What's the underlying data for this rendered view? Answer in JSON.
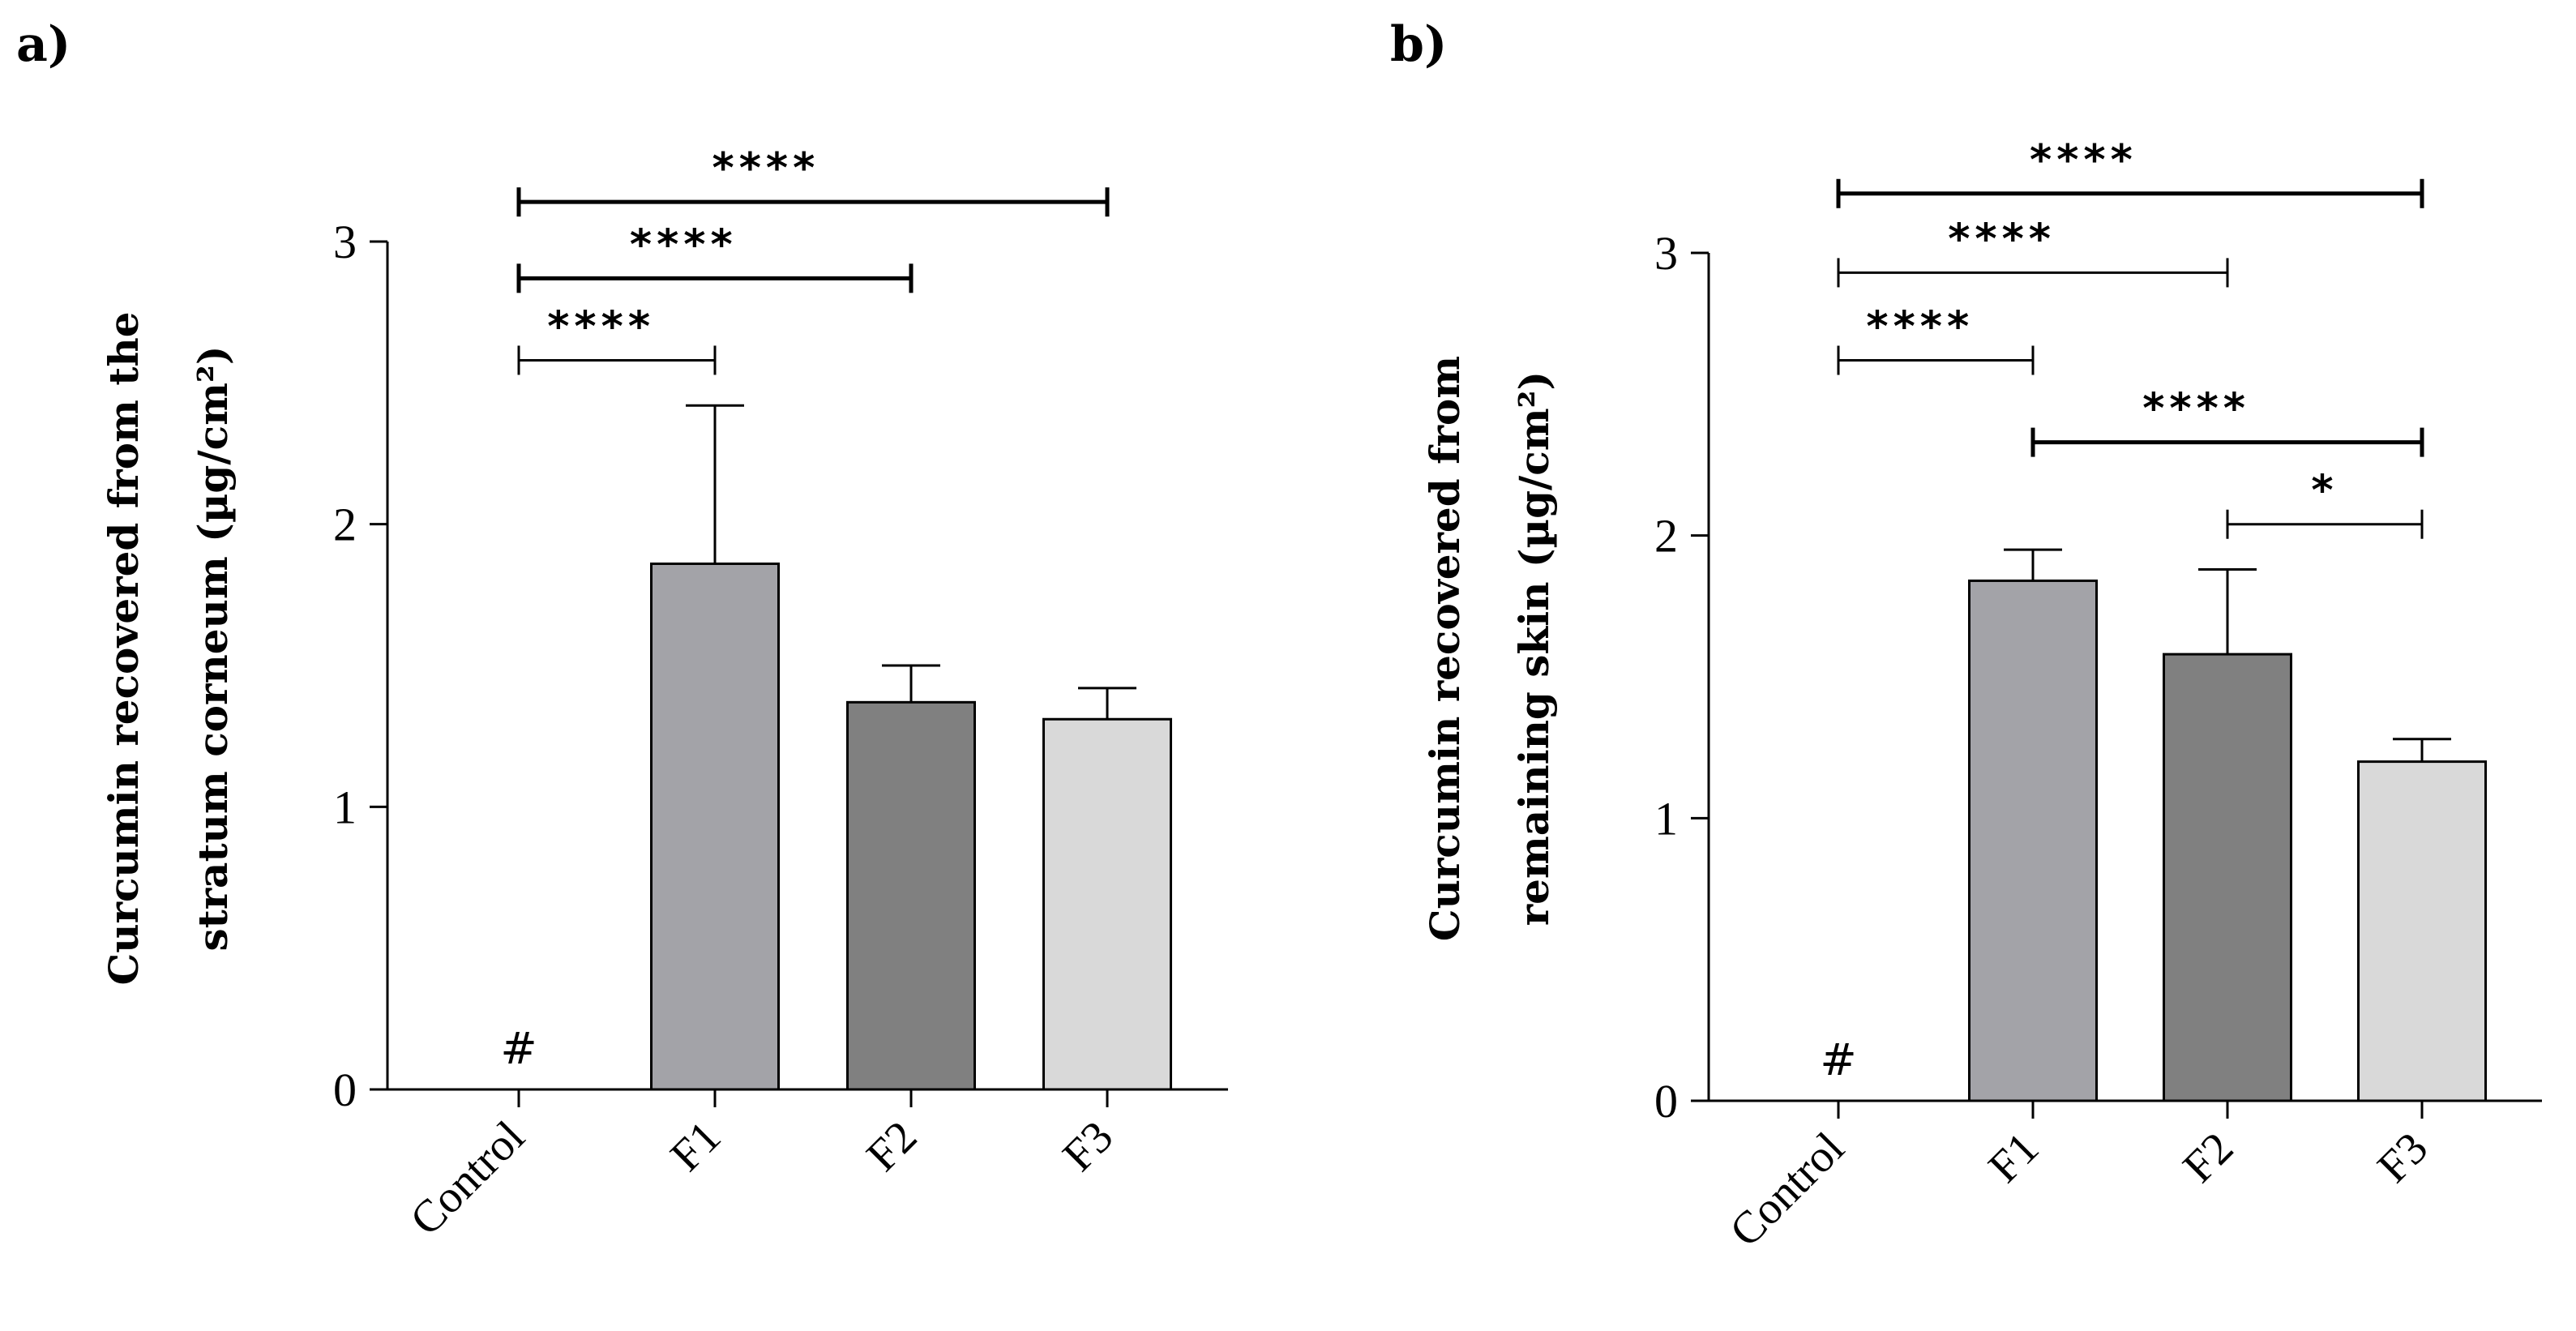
{
  "chart_data": [
    {
      "type": "bar",
      "panel": "a)",
      "ylabel_lines": [
        "Curcumin recovered from the",
        "stratum corneum (µg/cm²)"
      ],
      "categories": [
        "Control",
        "F1",
        "F2",
        "F3"
      ],
      "values": [
        0,
        1.86,
        1.37,
        1.31
      ],
      "errors": [
        0,
        0.56,
        0.13,
        0.11
      ],
      "colors": [
        "#ffffff",
        "#a3a3a8",
        "#808080",
        "#d9d9d9"
      ],
      "ylim": [
        0,
        3
      ],
      "yticks": [
        "0",
        "1",
        "2",
        "3"
      ],
      "missing_marker": "#",
      "significance": [
        {
          "from": 0,
          "to": 1,
          "label": "****",
          "level": 2.58,
          "bold": false
        },
        {
          "from": 0,
          "to": 2,
          "label": "****",
          "level": 2.87,
          "bold": true
        },
        {
          "from": 0,
          "to": 3,
          "label": "****",
          "level": 3.14,
          "bold": true
        }
      ]
    },
    {
      "type": "bar",
      "panel": "b)",
      "ylabel_lines": [
        "Curcumin recovered from",
        "remaining skin (µg/cm²)"
      ],
      "categories": [
        "Control",
        "F1",
        "F2",
        "F3"
      ],
      "values": [
        0,
        1.84,
        1.58,
        1.2
      ],
      "errors": [
        0,
        0.11,
        0.3,
        0.08
      ],
      "colors": [
        "#ffffff",
        "#a3a3a8",
        "#808080",
        "#d9d9d9"
      ],
      "ylim": [
        0,
        3
      ],
      "yticks": [
        "0",
        "1",
        "2",
        "3"
      ],
      "missing_marker": "#",
      "significance": [
        {
          "from": 0,
          "to": 1,
          "label": "****",
          "level": 2.62,
          "bold": false
        },
        {
          "from": 0,
          "to": 2,
          "label": "****",
          "level": 2.93,
          "bold": false
        },
        {
          "from": 0,
          "to": 3,
          "label": "****",
          "level": 3.21,
          "bold": true
        },
        {
          "from": 1,
          "to": 3,
          "label": "****",
          "level": 2.33,
          "bold": true
        },
        {
          "from": 2,
          "to": 3,
          "label": "*",
          "level": 2.04,
          "bold": false
        }
      ]
    }
  ]
}
